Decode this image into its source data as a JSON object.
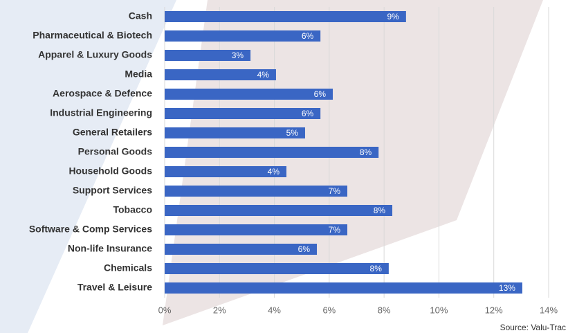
{
  "chart_data": {
    "type": "bar",
    "orientation": "horizontal",
    "categories": [
      "Cash",
      "Pharmaceutical & Biotech",
      "Apparel & Luxury Goods",
      "Media",
      "Aerospace & Defence",
      "Industrial Engineering",
      "General Retailers",
      "Personal Goods",
      "Household Goods",
      "Support Services",
      "Tobacco",
      "Software & Comp Services",
      "Non-life Insurance",
      "Chemicals",
      "Travel & Leisure"
    ],
    "values": [
      8.8,
      5.68,
      3.13,
      4.06,
      6.13,
      5.68,
      5.12,
      7.8,
      4.44,
      6.66,
      8.3,
      6.66,
      5.55,
      8.17,
      13.04
    ],
    "value_labels": [
      "9%",
      "6%",
      "3%",
      "4%",
      "6%",
      "6%",
      "5%",
      "8%",
      "4%",
      "7%",
      "8%",
      "7%",
      "6%",
      "8%",
      "13%"
    ],
    "color": "#3a66c4",
    "xlim": [
      0,
      14
    ],
    "xticks": [
      {
        "value": 0,
        "label": "0%"
      },
      {
        "value": 2,
        "label": "2%"
      },
      {
        "value": 4,
        "label": "4%"
      },
      {
        "value": 6,
        "label": "6%"
      },
      {
        "value": 8,
        "label": "8%"
      },
      {
        "value": 10,
        "label": "10%"
      },
      {
        "value": 12,
        "label": "12%"
      },
      {
        "value": 14,
        "label": "14%"
      }
    ],
    "grid": true,
    "source": "Source: Valu-Trac"
  }
}
